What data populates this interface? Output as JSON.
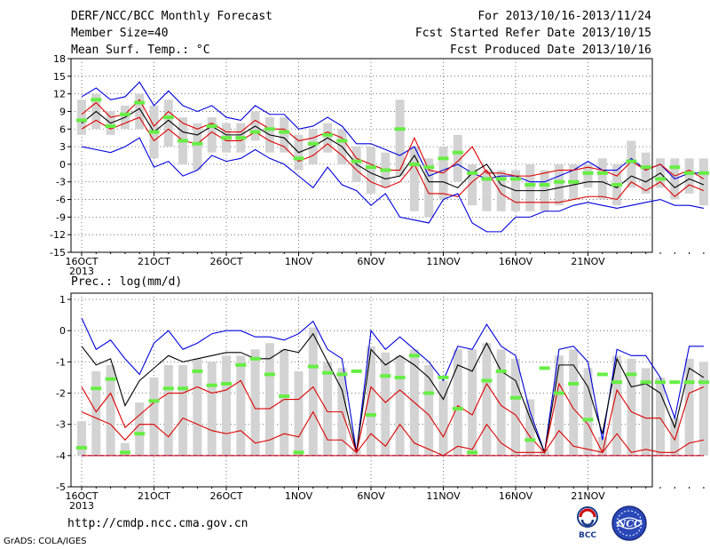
{
  "header": {
    "title": "DERF/NCC/BCC Monthly Forecast",
    "member_size": "Member Size=40",
    "variable": "Mean Surf. Temp.: °C",
    "forecast_period": "For 2013/10/16-2013/11/24",
    "started": "Fcst Started Refer Date 2013/10/15",
    "produced": "Fcst Produced Date 2013/10/16"
  },
  "footer": {
    "url": "http://cmdp.ncc.cma.gov.cn",
    "credit": "GrADS: COLA/IGES",
    "logo1_text": "BCC",
    "logo2_text": "NCC"
  },
  "colors": {
    "ensemble_bar": "#d3d3d3",
    "median_mark": "#66ee44",
    "mean_line": "#000000",
    "spread_line": "#dd0000",
    "extreme_line": "#0000dd",
    "grid": "#555555"
  },
  "chart_data": [
    {
      "type": "line",
      "title": "Mean Surf. Temp.: °C",
      "x_tick_labels": [
        "16OCT",
        "21OCT",
        "26OCT",
        "1NOV",
        "6NOV",
        "11NOV",
        "16NOV",
        "21NOV"
      ],
      "x_year_label": "2013",
      "y_ticks": [
        18,
        15,
        12,
        9,
        6,
        3,
        0,
        -3,
        -6,
        -9,
        -12,
        -15
      ],
      "ylim": [
        -15,
        18
      ],
      "grid": true,
      "series": [
        {
          "role": "max",
          "values": [
            11.5,
            13,
            11,
            11.5,
            14,
            10,
            12.5,
            10,
            9,
            10,
            8,
            7.5,
            10,
            8.5,
            8.5,
            6,
            6.5,
            8,
            6.5,
            3.5,
            3.5,
            2.5,
            1.5,
            3,
            -2,
            -1,
            0,
            -1.5,
            -2.5,
            -2,
            -2,
            -3,
            -3,
            -2,
            -1,
            0.5,
            -1,
            -1,
            1,
            -1,
            0,
            -2.5,
            -1.5,
            -1.5
          ]
        },
        {
          "role": "upper",
          "values": [
            8.5,
            10.5,
            8,
            8.5,
            11,
            6.5,
            9,
            7,
            6,
            7,
            5.5,
            5.5,
            7.5,
            6,
            6,
            4,
            4.5,
            5.5,
            4.5,
            1,
            0,
            -1,
            -1,
            4.5,
            -1,
            -1.5,
            0.5,
            3,
            -1.5,
            -1.5,
            -2,
            -2,
            -1.5,
            -1,
            -1,
            -0.5,
            -1,
            -2,
            0.5,
            -1,
            0,
            -2,
            -1,
            -2.5
          ]
        },
        {
          "role": "mean",
          "values": [
            7,
            9,
            7,
            8,
            9.5,
            5.5,
            7.5,
            5.5,
            5,
            6.5,
            5,
            5,
            6.5,
            5,
            4.5,
            2,
            3,
            4.5,
            3,
            0,
            -1.5,
            -2.5,
            -2,
            1.5,
            -3,
            -3,
            -4,
            -1.5,
            0,
            -3.5,
            -4.5,
            -4.5,
            -4.5,
            -4,
            -3.5,
            -3,
            -3,
            -4,
            -2,
            -3,
            -1.5,
            -4,
            -2.5,
            -3.5
          ]
        },
        {
          "role": "lower",
          "values": [
            6,
            7.5,
            6,
            7,
            8,
            4,
            6,
            4,
            3.5,
            5.5,
            4,
            4,
            5.5,
            4,
            3,
            0.5,
            1.5,
            3.5,
            1.5,
            -1,
            -3,
            -4,
            -3,
            0,
            -5,
            -5,
            -5.5,
            -3,
            -1,
            -5,
            -6.5,
            -6.5,
            -6.5,
            -6.5,
            -6,
            -5.5,
            -5.5,
            -6,
            -3,
            -4.5,
            -3,
            -5.5,
            -3.5,
            -4.5
          ]
        },
        {
          "role": "min",
          "values": [
            3,
            2.5,
            2,
            3,
            4.5,
            -0.5,
            0.5,
            -2,
            -1,
            1.5,
            0.5,
            1,
            2.5,
            1,
            0,
            -2,
            -4,
            -0.5,
            -3.5,
            -4.5,
            -7,
            -5,
            -9,
            -9.5,
            -10,
            -6,
            -5,
            -10,
            -11.5,
            -11.5,
            -9,
            -9,
            -8,
            -8,
            -7,
            -6.5,
            -7,
            -7.5,
            -7,
            -6.5,
            -6,
            -7,
            -7,
            -7.5
          ]
        },
        {
          "role": "median",
          "values": [
            7.5,
            11,
            6.5,
            8.5,
            10.5,
            5.5,
            8,
            4,
            3.5,
            6.5,
            4.5,
            4.5,
            5.5,
            6,
            5.5,
            1,
            3.5,
            5,
            4,
            0.5,
            -0.5,
            -1,
            6,
            0,
            -0.5,
            1,
            2,
            -1.5,
            -2.5,
            -2.5,
            -2.5,
            -3.5,
            -3.5,
            -3,
            -3,
            -1.5,
            -1.5,
            -3.5,
            0.5,
            -0.5,
            -2.5,
            -0.5,
            -1.5,
            -1.5
          ]
        }
      ],
      "bars": [
        {
          "low": 5,
          "high": 11
        },
        {
          "low": 6,
          "high": 12
        },
        {
          "low": 5,
          "high": 9
        },
        {
          "low": 6,
          "high": 10
        },
        {
          "low": 6,
          "high": 12
        },
        {
          "low": 1,
          "high": 10
        },
        {
          "low": 3,
          "high": 11
        },
        {
          "low": 0,
          "high": 8
        },
        {
          "low": -1,
          "high": 7
        },
        {
          "low": 2,
          "high": 8
        },
        {
          "low": 2,
          "high": 7
        },
        {
          "low": 2,
          "high": 7
        },
        {
          "low": 4,
          "high": 9
        },
        {
          "low": 2,
          "high": 8
        },
        {
          "low": 2,
          "high": 8
        },
        {
          "low": -1,
          "high": 5
        },
        {
          "low": 0,
          "high": 6
        },
        {
          "low": 2,
          "high": 7
        },
        {
          "low": 0,
          "high": 6
        },
        {
          "low": -3,
          "high": 3
        },
        {
          "low": -5,
          "high": 3
        },
        {
          "low": -4,
          "high": 2
        },
        {
          "low": -2,
          "high": 11
        },
        {
          "low": -8,
          "high": 3
        },
        {
          "low": -9,
          "high": 1
        },
        {
          "low": -6,
          "high": 3
        },
        {
          "low": -3,
          "high": 5
        },
        {
          "low": -7,
          "high": 0
        },
        {
          "low": -8,
          "high": -1
        },
        {
          "low": -8,
          "high": -1
        },
        {
          "low": -8,
          "high": -1
        },
        {
          "low": -8,
          "high": 0
        },
        {
          "low": -8,
          "high": -1
        },
        {
          "low": -7,
          "high": 0
        },
        {
          "low": -6,
          "high": 0
        },
        {
          "low": -4,
          "high": 0
        },
        {
          "low": -6,
          "high": 1
        },
        {
          "low": -7,
          "high": 0
        },
        {
          "low": -4,
          "high": 4
        },
        {
          "low": -5,
          "high": 2
        },
        {
          "low": -4,
          "high": 1
        },
        {
          "low": -6,
          "high": 1
        },
        {
          "low": -5,
          "high": 1
        },
        {
          "low": -7,
          "high": 1
        }
      ]
    },
    {
      "type": "line",
      "title": "Prec.: log(mm/d)",
      "x_tick_labels": [
        "16OCT",
        "21OCT",
        "26OCT",
        "1NOV",
        "6NOV",
        "11NOV",
        "16NOV",
        "21NOV"
      ],
      "x_year_label": "2013",
      "y_ticks": [
        1,
        0,
        -1,
        -2,
        -3,
        -4,
        -5
      ],
      "ylim": [
        -5,
        1.2
      ],
      "grid": true,
      "series": [
        {
          "role": "max",
          "values": [
            0.4,
            -0.6,
            -0.3,
            -0.9,
            -1.4,
            -0.4,
            0,
            -0.6,
            -0.4,
            -0.1,
            0,
            0,
            -0.2,
            -0.2,
            -0.3,
            -0.1,
            0.3,
            -0.6,
            -0.9,
            -3.9,
            0,
            -0.6,
            -0.2,
            -0.6,
            -1,
            -1.6,
            -0.5,
            -0.6,
            0.2,
            -0.5,
            -0.8,
            -2.6,
            -3.9,
            -0.6,
            -0.5,
            -1,
            -3.5,
            -0.6,
            -0.8,
            -0.8,
            -1.5,
            -2.8,
            -0.5,
            -0.5
          ]
        },
        {
          "role": "mean",
          "values": [
            -0.5,
            -1.1,
            -0.9,
            -2.4,
            -1.6,
            -1.2,
            -0.8,
            -1,
            -0.9,
            -0.8,
            -0.7,
            -0.7,
            -0.9,
            -0.9,
            -0.6,
            -0.7,
            -0.1,
            -1,
            -1.9,
            -3.9,
            -0.6,
            -1.1,
            -0.8,
            -1.1,
            -1.5,
            -2.2,
            -1.1,
            -1.3,
            -0.4,
            -1.3,
            -1.6,
            -2.8,
            -3.9,
            -1.1,
            -1.1,
            -1.8,
            -3.3,
            -0.9,
            -1.8,
            -1.7,
            -2,
            -3.1,
            -1.2,
            -1.5
          ]
        },
        {
          "role": "upper",
          "values": [
            -1.8,
            -2.6,
            -2,
            -3.1,
            -2.7,
            -2.3,
            -2,
            -2,
            -1.8,
            -2,
            -1.9,
            -1.6,
            -2.5,
            -2.5,
            -2.2,
            -2.2,
            -1.8,
            -2.6,
            -2.6,
            -3.9,
            -1.8,
            -2.3,
            -1.9,
            -2.3,
            -2.7,
            -3.4,
            -2.4,
            -2.7,
            -1.7,
            -2.4,
            -2.7,
            -3.4,
            -3.9,
            -1.7,
            -2.5,
            -3,
            -3.9,
            -1.9,
            -2.6,
            -2.8,
            -2.8,
            -3.5,
            -2,
            -1.8
          ]
        },
        {
          "role": "lower",
          "values": [
            -2.6,
            -2.8,
            -3,
            -3.5,
            -3,
            -3,
            -3.4,
            -2.8,
            -3,
            -3.2,
            -3.3,
            -3.2,
            -3.6,
            -3.5,
            -3.3,
            -3.4,
            -2.6,
            -3.5,
            -3.5,
            -3.9,
            -3.3,
            -3.7,
            -3,
            -3.6,
            -3.8,
            -4,
            -3.7,
            -3.8,
            -3,
            -3.6,
            -3.9,
            -3.9,
            -3.9,
            -3.2,
            -3.7,
            -3.8,
            -3.9,
            -3.3,
            -3.9,
            -3.8,
            -3.9,
            -3.9,
            -3.6,
            -3.5
          ]
        },
        {
          "role": "min",
          "values": [
            -4,
            -4,
            -4,
            -4,
            -4,
            -4,
            -4,
            -4,
            -4,
            -4,
            -4,
            -4,
            -4,
            -4,
            -4,
            -4,
            -4,
            -4,
            -4,
            -4,
            -4,
            -4,
            -4,
            -4,
            -4,
            -4,
            -4,
            -4,
            -4,
            -4,
            -4,
            -4,
            -4,
            -4,
            -4,
            -4,
            -4,
            -4,
            -4,
            -4,
            -4,
            -4,
            -4,
            -4
          ]
        },
        {
          "role": "median",
          "values": [
            -3.75,
            -1.85,
            -1.55,
            -3.9,
            -3.3,
            -2.25,
            -1.85,
            -1.85,
            -1.3,
            -1.75,
            -1.7,
            -1.1,
            -0.9,
            -1.4,
            -2.1,
            -3.9,
            -1.15,
            -1.35,
            -1.4,
            -1.3,
            -2.7,
            -1.45,
            -1.5,
            -0.8,
            -2,
            -1.5,
            -2.5,
            -3.9,
            -1.6,
            -1.3,
            -2.15,
            -3.5,
            -1.2,
            -2,
            -1.7,
            -2.85,
            -1.4,
            -1.65,
            -1.4,
            -1.65,
            -1.65,
            -1.65,
            -1.65,
            -1.65
          ]
        }
      ],
      "bars": [
        {
          "low": -4,
          "high": -2.9
        },
        {
          "low": -4,
          "high": -1.3
        },
        {
          "low": -4,
          "high": -1.1
        },
        {
          "low": -4,
          "high": -3.6
        },
        {
          "low": -4,
          "high": -2.3
        },
        {
          "low": -4,
          "high": -1.5
        },
        {
          "low": -4,
          "high": -1.1
        },
        {
          "low": -4,
          "high": -1.1
        },
        {
          "low": -4,
          "high": -0.9
        },
        {
          "low": -4,
          "high": -1
        },
        {
          "low": -4,
          "high": -0.8
        },
        {
          "low": -4,
          "high": -0.8
        },
        {
          "low": -4,
          "high": -0.6
        },
        {
          "low": -4,
          "high": -0.4
        },
        {
          "low": -4,
          "high": -0.6
        },
        {
          "low": -4,
          "high": -1.3
        },
        {
          "low": -4,
          "high": 0.1
        },
        {
          "low": -4,
          "high": -1
        },
        {
          "low": -4,
          "high": -1.2
        },
        {
          "low": -4,
          "high": -3.8
        },
        {
          "low": -4,
          "high": -0.5
        },
        {
          "low": -4,
          "high": -0.7
        },
        {
          "low": -4,
          "high": -0.8
        },
        {
          "low": -4,
          "high": -0.6
        },
        {
          "low": -4,
          "high": -1.1
        },
        {
          "low": -4,
          "high": -1.6
        },
        {
          "low": -4,
          "high": -0.6
        },
        {
          "low": -4,
          "high": -0.6
        },
        {
          "low": -4,
          "high": -0.4
        },
        {
          "low": -4,
          "high": -0.6
        },
        {
          "low": -4,
          "high": -0.9
        },
        {
          "low": -4,
          "high": -2.2
        },
        {
          "low": -4,
          "high": -3.8
        },
        {
          "low": -4,
          "high": -0.8
        },
        {
          "low": -4,
          "high": -0.6
        },
        {
          "low": -4,
          "high": -1.2
        },
        {
          "low": -4,
          "high": -3.4
        },
        {
          "low": -4,
          "high": -0.8
        },
        {
          "low": -4,
          "high": -0.9
        },
        {
          "low": -4,
          "high": -1.2
        },
        {
          "low": -4,
          "high": -1.5
        },
        {
          "low": -4,
          "high": -2.8
        },
        {
          "low": -4,
          "high": -0.9
        },
        {
          "low": -4,
          "high": -1
        }
      ]
    }
  ]
}
